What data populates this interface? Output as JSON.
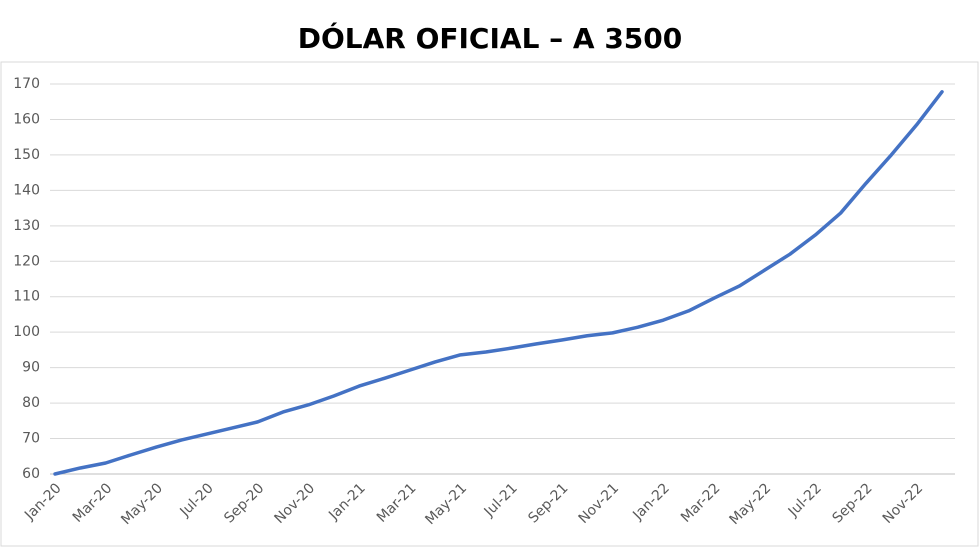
{
  "chart_data": {
    "type": "line",
    "title": "DÓLAR OFICIAL – A 3500",
    "categories": [
      "Jan-20",
      null,
      "Mar-20",
      null,
      "May-20",
      null,
      "Jul-20",
      null,
      "Sep-20",
      null,
      "Nov-20",
      null,
      "Jan-21",
      null,
      "Mar-21",
      null,
      "May-21",
      null,
      "Jul-21",
      null,
      "Sep-21",
      null,
      "Nov-21",
      null,
      "Jan-22",
      null,
      "Mar-22",
      null,
      "May-22",
      null,
      "Jul-22",
      null,
      "Sep-22",
      null,
      "Nov-22",
      null
    ],
    "series": [
      {
        "name": "A 3500",
        "color": "#4472c4",
        "values": [
          60,
          61.7,
          63.1,
          65.4,
          67.6,
          69.6,
          71.3,
          73,
          74.7,
          77.5,
          79.5,
          82,
          84.8,
          87,
          89.3,
          91.6,
          93.6,
          94.4,
          95.5,
          96.7,
          97.8,
          99,
          99.8,
          101.4,
          103.4,
          106,
          109.6,
          113,
          117.5,
          122,
          127.4,
          133.6,
          142,
          150,
          158.5,
          167.8
        ]
      }
    ],
    "ylim": [
      60,
      170
    ],
    "yticks": [
      60,
      70,
      80,
      90,
      100,
      110,
      120,
      130,
      140,
      150,
      160,
      170
    ],
    "grid": true
  }
}
